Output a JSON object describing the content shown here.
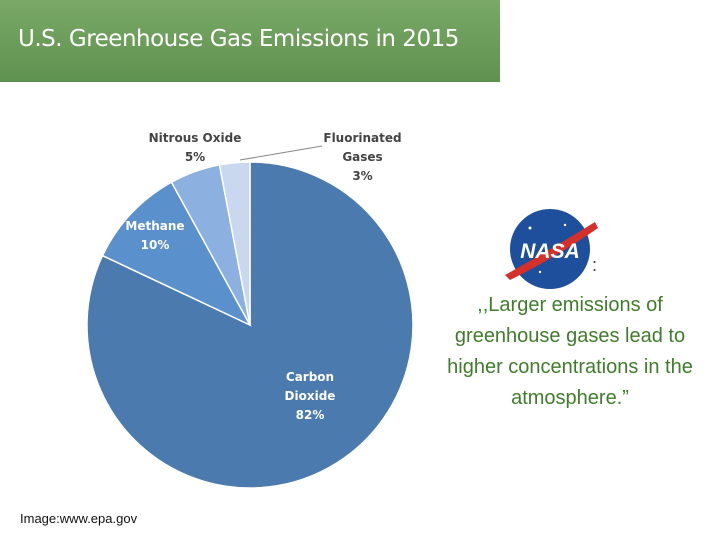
{
  "chart_data": {
    "type": "pie",
    "title": "U.S. Greenhouse Gas Emissions in 2015",
    "categories": [
      "Carbon Dioxide",
      "Methane",
      "Nitrous Oxide",
      "Fluorinated Gases"
    ],
    "values": [
      82,
      10,
      5,
      3
    ],
    "value_labels": [
      "82%",
      "10%",
      "5%",
      "3%"
    ],
    "colors": [
      "#4a7aae",
      "#5a90cc",
      "#8cb0df",
      "#c9d8ef"
    ]
  },
  "logo_text": "NASA",
  "colon": ":",
  "quote": ",,Larger emissions of greenhouse gases lead to higher concentrations in the atmosphere.”",
  "credit": "Image:www.epa.gov"
}
